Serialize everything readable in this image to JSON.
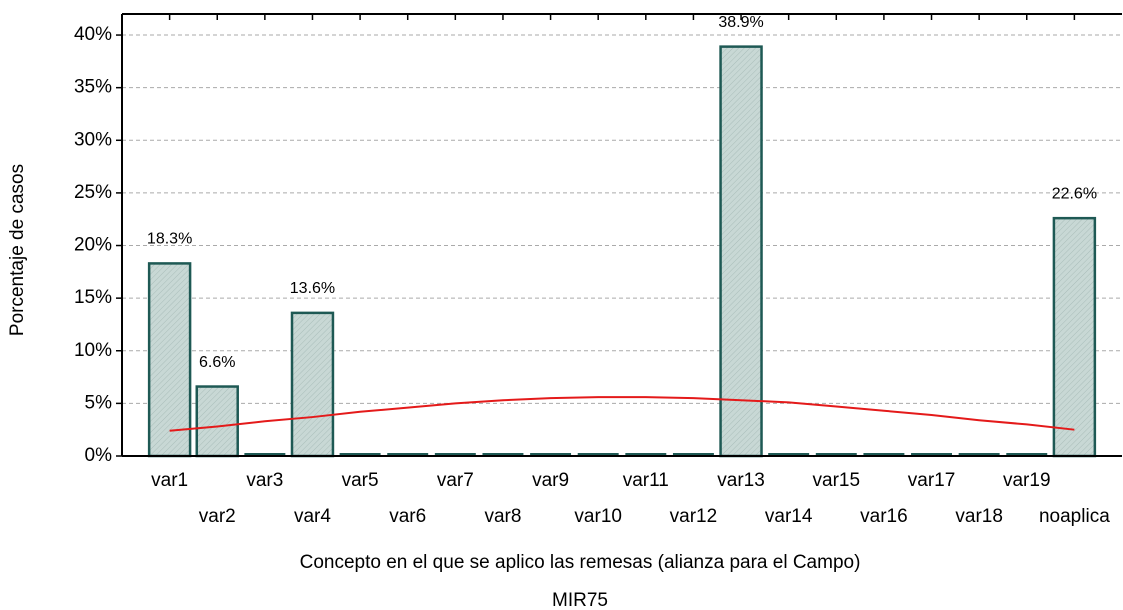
{
  "chart_data": {
    "type": "bar",
    "x_label": "Concepto en el que se aplico las remesas (alianza para el Campo)",
    "subtitle": "MIR75",
    "y_label": "Porcentaje de casos",
    "categories": [
      "var1",
      "var2",
      "var3",
      "var4",
      "var5",
      "var6",
      "var7",
      "var8",
      "var9",
      "var10",
      "var11",
      "var12",
      "var13",
      "var14",
      "var15",
      "var16",
      "var17",
      "var18",
      "var19",
      "noaplica"
    ],
    "values": [
      18.3,
      6.6,
      0,
      13.6,
      0,
      0,
      0,
      0,
      0,
      0,
      0,
      0,
      38.9,
      0,
      0,
      0,
      0,
      0,
      0,
      22.6
    ],
    "value_labels": [
      "18.3%",
      "6.6%",
      null,
      "13.6%",
      null,
      null,
      null,
      null,
      null,
      null,
      null,
      null,
      "38.9%",
      null,
      null,
      null,
      null,
      null,
      null,
      "22.6%"
    ],
    "color": "#c8d8d5",
    "edge_color": "#1e5954",
    "fit_curve": {
      "color": "#e41a1a",
      "values": [
        2.4,
        2.8,
        3.3,
        3.7,
        4.2,
        4.6,
        5.0,
        5.3,
        5.5,
        5.6,
        5.6,
        5.5,
        5.3,
        5.1,
        4.7,
        4.3,
        3.9,
        3.4,
        3.0,
        2.5
      ]
    },
    "ylim": [
      0,
      42
    ],
    "yticks": [
      {
        "value": 0,
        "label": "0%"
      },
      {
        "value": 5,
        "label": "5%"
      },
      {
        "value": 10,
        "label": "10%"
      },
      {
        "value": 15,
        "label": "15%"
      },
      {
        "value": 20,
        "label": "20%"
      },
      {
        "value": 25,
        "label": "25%"
      },
      {
        "value": 30,
        "label": "30%"
      },
      {
        "value": 35,
        "label": "35%"
      },
      {
        "value": 40,
        "label": "40%"
      }
    ],
    "grid": true
  }
}
